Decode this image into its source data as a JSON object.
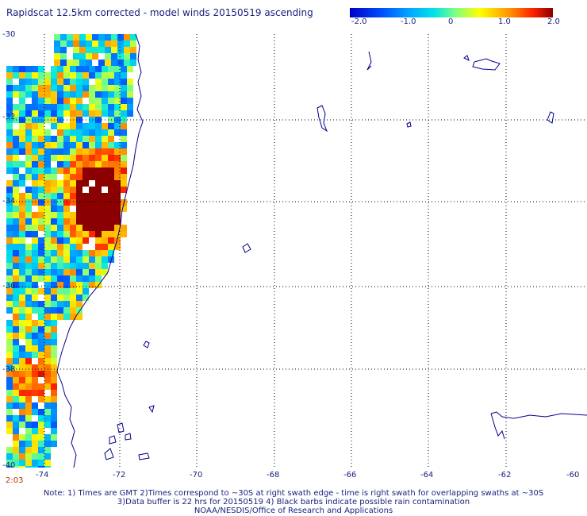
{
  "title": "Rapidscat 12.5km corrected - model winds 20150519 ascending",
  "colorbar": {
    "ticks": [
      "-2.0",
      "-1.0",
      "0",
      "1.0",
      "2.0"
    ],
    "range": [
      -2.0,
      2.0
    ]
  },
  "lat_labels": [
    "-30",
    "-32",
    "-34",
    "-36",
    "-38",
    "-40"
  ],
  "lon_labels": [
    "-74",
    "-72",
    "-70",
    "-68",
    "-66",
    "-64",
    "-62",
    "-60"
  ],
  "time_label": "2:03",
  "notes": [
    "Note: 1) Times are GMT 2)Times correspond to ~30S at right swath edge - time is right swath for overlapping swaths at ~30S",
    "3)Data buffer is 22 hrs for 20150519 4) Black barbs indicate possible rain contamination",
    "NOAA/NESDIS/Office of Research and Applications"
  ],
  "colors": {
    "coast": "#00008b",
    "grid": "#000000",
    "text": "#1a237e"
  }
}
